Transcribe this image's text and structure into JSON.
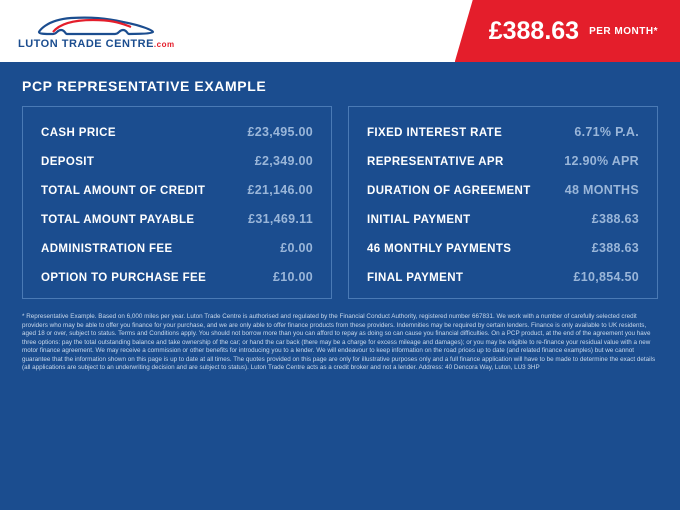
{
  "logo": {
    "line": "LUTON TRADE CENTRE",
    "suffix": ".com"
  },
  "price": {
    "amount": "£388.63",
    "per": "PER MONTH*"
  },
  "title": "PCP REPRESENTATIVE EXAMPLE",
  "left": [
    {
      "label": "CASH PRICE",
      "value": "£23,495.00"
    },
    {
      "label": "DEPOSIT",
      "value": "£2,349.00"
    },
    {
      "label": "TOTAL AMOUNT OF CREDIT",
      "value": "£21,146.00"
    },
    {
      "label": "TOTAL AMOUNT PAYABLE",
      "value": "£31,469.11"
    },
    {
      "label": "ADMINISTRATION FEE",
      "value": "£0.00"
    },
    {
      "label": "OPTION TO PURCHASE FEE",
      "value": "£10.00"
    }
  ],
  "right": [
    {
      "label": "FIXED INTEREST RATE",
      "value": "6.71% P.A."
    },
    {
      "label": "REPRESENTATIVE APR",
      "value": "12.90% APR"
    },
    {
      "label": "DURATION OF AGREEMENT",
      "value": "48 MONTHS"
    },
    {
      "label": "INITIAL PAYMENT",
      "value": "£388.63"
    },
    {
      "label": "46 MONTHLY PAYMENTS",
      "value": "£388.63"
    },
    {
      "label": "FINAL PAYMENT",
      "value": "£10,854.50"
    }
  ],
  "footnote": "* Representative Example. Based on 6,000 miles per year. Luton Trade Centre is authorised and regulated by the Financial Conduct Authority, registered number 667831. We work with a number of carefully selected credit providers who may be able to offer you finance for your purchase, and we are only able to offer finance products from these providers. Indemnities may be required by certain lenders. Finance is only available to UK residents, aged 18 or over, subject to status. Terms and Conditions apply. You should not borrow more than you can afford to repay as doing so can cause you financial difficulties. On a PCP product, at the end of the agreement you have three options: pay the total outstanding balance and take ownership of the car; or hand the car back (there may be a charge for excess mileage and damages); or you may be eligible to re-finance your residual value with a new motor finance agreement. We may receive a commission or other benefits for introducing you to a lender. We will endeavour to keep information on the road prices up to date (and related finance examples) but we cannot guarantee that the information shown on this page is up to date at all times. The quotes provided on this page are only for illustrative purposes only and a full finance application will have to be made to determine the exact details (all applications are subject to an underwriting decision and are subject to status). Luton Trade Centre acts as a credit broker and not a lender. Address: 40 Dencora Way, Luton, LU3 3HP"
}
